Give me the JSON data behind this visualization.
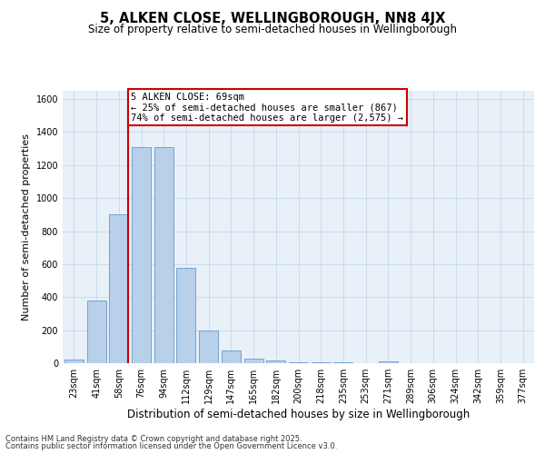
{
  "title": "5, ALKEN CLOSE, WELLINGBOROUGH, NN8 4JX",
  "subtitle": "Size of property relative to semi-detached houses in Wellingborough",
  "xlabel": "Distribution of semi-detached houses by size in Wellingborough",
  "ylabel": "Number of semi-detached properties",
  "bar_labels": [
    "23sqm",
    "41sqm",
    "58sqm",
    "76sqm",
    "94sqm",
    "112sqm",
    "129sqm",
    "147sqm",
    "165sqm",
    "182sqm",
    "200sqm",
    "218sqm",
    "235sqm",
    "253sqm",
    "271sqm",
    "289sqm",
    "306sqm",
    "324sqm",
    "342sqm",
    "359sqm",
    "377sqm"
  ],
  "bar_values": [
    20,
    380,
    900,
    1310,
    1310,
    575,
    200,
    75,
    30,
    15,
    5,
    5,
    5,
    0,
    10,
    0,
    0,
    0,
    0,
    0,
    0
  ],
  "bar_color": "#b8d0ea",
  "bar_edge_color": "#6699cc",
  "vline_bar_index": 2,
  "annotation_text": "5 ALKEN CLOSE: 69sqm\n← 25% of semi-detached houses are smaller (867)\n74% of semi-detached houses are larger (2,575) →",
  "annotation_box_color": "#ffffff",
  "annotation_box_edge_color": "#cc0000",
  "vline_color": "#cc0000",
  "ylim": [
    0,
    1650
  ],
  "yticks": [
    0,
    200,
    400,
    600,
    800,
    1000,
    1200,
    1400,
    1600
  ],
  "grid_color": "#c8d8ea",
  "background_color": "#e8f0f8",
  "footer_line1": "Contains HM Land Registry data © Crown copyright and database right 2025.",
  "footer_line2": "Contains public sector information licensed under the Open Government Licence v3.0.",
  "title_fontsize": 10.5,
  "subtitle_fontsize": 8.5,
  "xlabel_fontsize": 8.5,
  "ylabel_fontsize": 8,
  "tick_fontsize": 7,
  "annotation_fontsize": 7.5,
  "footer_fontsize": 6
}
